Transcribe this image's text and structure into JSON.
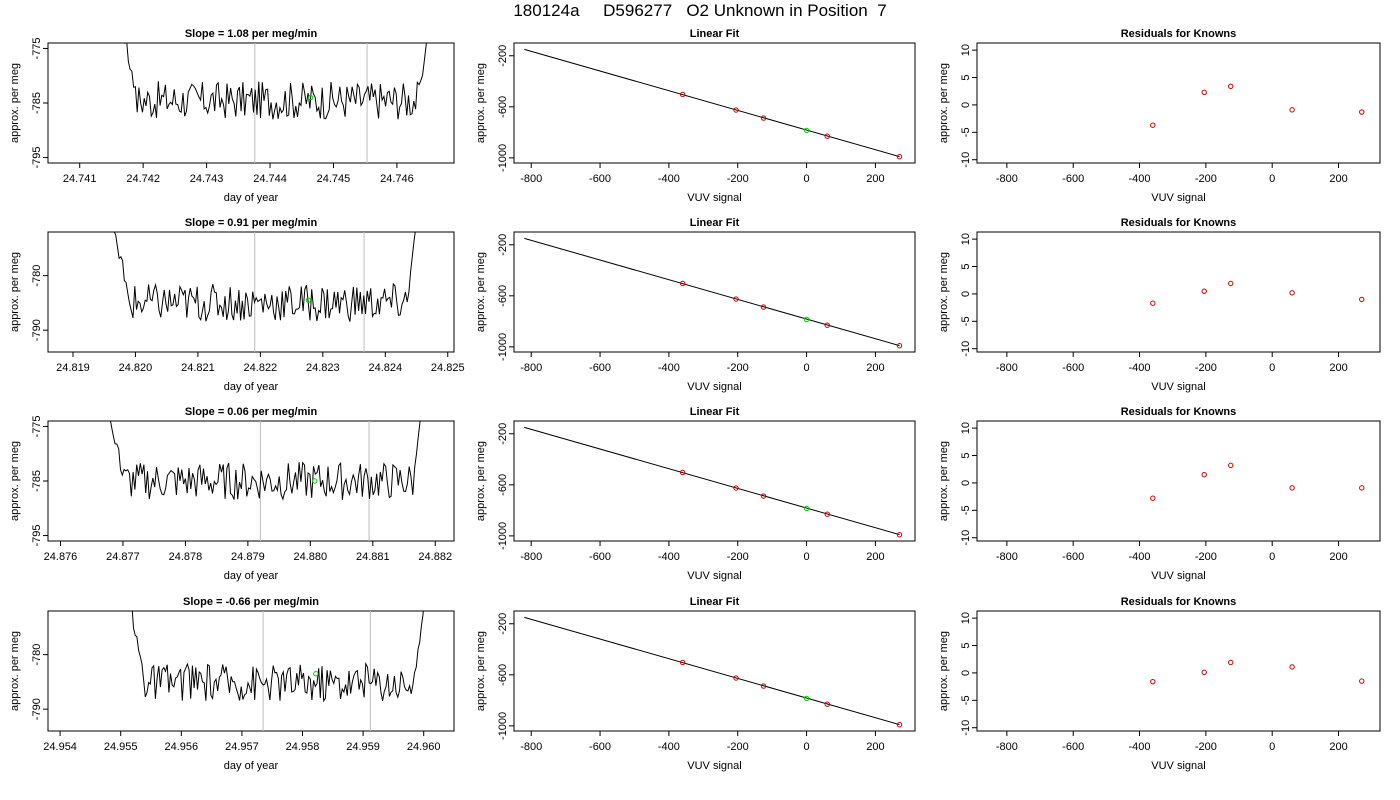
{
  "page_title": "180124a     D596277   O2 Unknown in Position  7",
  "colors": {
    "trace": "#000000",
    "known_point": "#cc0000",
    "unknown_point": "#00cc00",
    "marker_line": "#bdbdbd",
    "frame": "#000000"
  },
  "chart_data": [
    {
      "type": "line",
      "panel": "time-series",
      "row": 1,
      "title": "Slope =  1.08  per meg/min",
      "xlabel": "day of year",
      "ylabel": "approx. per meg",
      "xlim": [
        24.7405,
        24.7469
      ],
      "ylim": [
        -796,
        -774
      ],
      "xticks": [
        "24.741",
        "24.742",
        "24.743",
        "24.744",
        "24.745",
        "24.746"
      ],
      "yticks": [
        "-775",
        "-785",
        "-795"
      ],
      "trace": {
        "start": 24.7416,
        "end": 24.7466,
        "baseline": -784.5
      },
      "markers_x": [
        24.74376,
        24.74553
      ],
      "unknown_point": {
        "x": 24.74464,
        "y": -784.0
      }
    },
    {
      "type": "scatter",
      "panel": "linear-fit",
      "row": 1,
      "title": "Linear Fit",
      "xlabel": "VUV signal",
      "ylabel": "approx. per meg",
      "xlim": [
        -850,
        315
      ],
      "ylim": [
        -1040,
        -100
      ],
      "xticks": [
        "-800",
        "-600",
        "-400",
        "-200",
        "0",
        "200"
      ],
      "yticks": [
        "-200",
        "-600",
        "-1000"
      ],
      "fit_line": {
        "x1": -820,
        "y1": -150,
        "x2": 270,
        "y2": -990
      },
      "knowns": [
        {
          "x": -360,
          "y": -503
        },
        {
          "x": -205,
          "y": -625
        },
        {
          "x": -125,
          "y": -688
        },
        {
          "x": 60,
          "y": -830
        },
        {
          "x": 270,
          "y": -991
        }
      ],
      "unknown": {
        "x": 0,
        "y": -785
      }
    },
    {
      "type": "scatter",
      "panel": "residuals",
      "row": 1,
      "title": "Residuals for Knowns",
      "xlabel": "VUV signal",
      "ylabel": "approx. per meg",
      "xlim": [
        -890,
        325
      ],
      "ylim": [
        -10.6,
        11.3
      ],
      "xticks": [
        "-800",
        "-600",
        "-400",
        "-200",
        "0",
        "200"
      ],
      "yticks": [
        "10",
        "5",
        "0",
        "-5",
        "-10"
      ],
      "knowns": [
        {
          "x": -360,
          "y": -3.7
        },
        {
          "x": -205,
          "y": 2.3
        },
        {
          "x": -125,
          "y": 3.4
        },
        {
          "x": 60,
          "y": -0.9
        },
        {
          "x": 270,
          "y": -1.3
        }
      ]
    },
    {
      "type": "line",
      "panel": "time-series",
      "row": 2,
      "title": "Slope =  0.91  per meg/min",
      "xlabel": "day of year",
      "ylabel": "approx. per meg",
      "xlim": [
        24.8186,
        24.8251
      ],
      "ylim": [
        -794,
        -772
      ],
      "xticks": [
        "24.819",
        "24.820",
        "24.821",
        "24.822",
        "24.823",
        "24.824",
        "24.825"
      ],
      "yticks": [
        "-780",
        "-790"
      ],
      "trace": {
        "start": 24.8196,
        "end": 24.8246,
        "baseline": -785
      },
      "markers_x": [
        24.82191,
        24.82366
      ],
      "unknown_point": {
        "x": 24.82277,
        "y": -784.5
      }
    },
    {
      "type": "scatter",
      "panel": "linear-fit",
      "row": 2,
      "title": "Linear Fit",
      "xlabel": "VUV signal",
      "ylabel": "approx. per meg",
      "xlim": [
        -850,
        315
      ],
      "ylim": [
        -1040,
        -100
      ],
      "xticks": [
        "-800",
        "-600",
        "-400",
        "-200",
        "0",
        "200"
      ],
      "yticks": [
        "-200",
        "-600",
        "-1000"
      ],
      "fit_line": {
        "x1": -820,
        "y1": -150,
        "x2": 270,
        "y2": -990
      },
      "knowns": [
        {
          "x": -360,
          "y": -503
        },
        {
          "x": -205,
          "y": -625
        },
        {
          "x": -125,
          "y": -688
        },
        {
          "x": 60,
          "y": -830
        },
        {
          "x": 270,
          "y": -991
        }
      ],
      "unknown": {
        "x": 0,
        "y": -785
      }
    },
    {
      "type": "scatter",
      "panel": "residuals",
      "row": 2,
      "title": "Residuals for Knowns",
      "xlabel": "VUV signal",
      "ylabel": "approx. per meg",
      "xlim": [
        -890,
        325
      ],
      "ylim": [
        -10.6,
        11.3
      ],
      "xticks": [
        "-800",
        "-600",
        "-400",
        "-200",
        "0",
        "200"
      ],
      "yticks": [
        "10",
        "5",
        "0",
        "-5",
        "-10"
      ],
      "knowns": [
        {
          "x": -360,
          "y": -1.7
        },
        {
          "x": -205,
          "y": 0.5
        },
        {
          "x": -125,
          "y": 1.9
        },
        {
          "x": 60,
          "y": 0.2
        },
        {
          "x": 270,
          "y": -1.0
        }
      ]
    },
    {
      "type": "line",
      "panel": "time-series",
      "row": 3,
      "title": "Slope =  0.06  per meg/min",
      "xlabel": "day of year",
      "ylabel": "approx. per meg",
      "xlim": [
        24.8758,
        24.8823
      ],
      "ylim": [
        -796,
        -774
      ],
      "xticks": [
        "24.876",
        "24.877",
        "24.878",
        "24.879",
        "24.880",
        "24.881",
        "24.882"
      ],
      "yticks": [
        "-775",
        "-785",
        "-795"
      ],
      "trace": {
        "start": 24.8767,
        "end": 24.8819,
        "baseline": -785
      },
      "markers_x": [
        24.8792,
        24.88094
      ],
      "unknown_point": {
        "x": 24.88007,
        "y": -785.0
      }
    },
    {
      "type": "scatter",
      "panel": "linear-fit",
      "row": 3,
      "title": "Linear Fit",
      "xlabel": "VUV signal",
      "ylabel": "approx. per meg",
      "xlim": [
        -850,
        315
      ],
      "ylim": [
        -1040,
        -100
      ],
      "xticks": [
        "-800",
        "-600",
        "-400",
        "-200",
        "0",
        "200"
      ],
      "yticks": [
        "-200",
        "-600",
        "-1000"
      ],
      "fit_line": {
        "x1": -820,
        "y1": -150,
        "x2": 270,
        "y2": -990
      },
      "knowns": [
        {
          "x": -360,
          "y": -503
        },
        {
          "x": -205,
          "y": -625
        },
        {
          "x": -125,
          "y": -688
        },
        {
          "x": 60,
          "y": -830
        },
        {
          "x": 270,
          "y": -991
        }
      ],
      "unknown": {
        "x": 0,
        "y": -785
      }
    },
    {
      "type": "scatter",
      "panel": "residuals",
      "row": 3,
      "title": "Residuals for Knowns",
      "xlabel": "VUV signal",
      "ylabel": "approx. per meg",
      "xlim": [
        -890,
        325
      ],
      "ylim": [
        -10.6,
        11.3
      ],
      "xticks": [
        "-800",
        "-600",
        "-400",
        "-200",
        "0",
        "200"
      ],
      "yticks": [
        "10",
        "5",
        "0",
        "-5",
        "-10"
      ],
      "knowns": [
        {
          "x": -360,
          "y": -2.8
        },
        {
          "x": -205,
          "y": 1.5
        },
        {
          "x": -125,
          "y": 3.2
        },
        {
          "x": 60,
          "y": -0.9
        },
        {
          "x": 270,
          "y": -0.9
        }
      ]
    },
    {
      "type": "line",
      "panel": "time-series",
      "row": 4,
      "title": "Slope =  -0.66  per meg/min",
      "xlabel": "day of year",
      "ylabel": "approx. per meg",
      "xlim": [
        24.9538,
        24.9605
      ],
      "ylim": [
        -794,
        -772
      ],
      "xticks": [
        "24.954",
        "24.955",
        "24.956",
        "24.957",
        "24.958",
        "24.959",
        "24.960"
      ],
      "yticks": [
        "-780",
        "-790"
      ],
      "trace": {
        "start": 24.9551,
        "end": 24.9601,
        "baseline": -785
      },
      "markers_x": [
        24.95735,
        24.95912
      ],
      "unknown_point": {
        "x": 24.95822,
        "y": -783.5
      }
    },
    {
      "type": "scatter",
      "panel": "linear-fit",
      "row": 4,
      "title": "Linear Fit",
      "xlabel": "VUV signal",
      "ylabel": "approx. per meg",
      "xlim": [
        -850,
        315
      ],
      "ylim": [
        -1040,
        -100
      ],
      "xticks": [
        "-800",
        "-600",
        "-400",
        "-200",
        "0",
        "200"
      ],
      "yticks": [
        "-200",
        "-600",
        "-1000"
      ],
      "fit_line": {
        "x1": -820,
        "y1": -150,
        "x2": 270,
        "y2": -990
      },
      "knowns": [
        {
          "x": -360,
          "y": -503
        },
        {
          "x": -205,
          "y": -625
        },
        {
          "x": -125,
          "y": -688
        },
        {
          "x": 60,
          "y": -830
        },
        {
          "x": 270,
          "y": -991
        }
      ],
      "unknown": {
        "x": 0,
        "y": -785
      }
    },
    {
      "type": "scatter",
      "panel": "residuals",
      "row": 4,
      "title": "Residuals for Knowns",
      "xlabel": "VUV signal",
      "ylabel": "approx. per meg",
      "xlim": [
        -890,
        325
      ],
      "ylim": [
        -10.6,
        11.3
      ],
      "xticks": [
        "-800",
        "-600",
        "-400",
        "-200",
        "0",
        "200"
      ],
      "yticks": [
        "10",
        "5",
        "0",
        "-5",
        "-10"
      ],
      "knowns": [
        {
          "x": -360,
          "y": -1.6
        },
        {
          "x": -205,
          "y": 0.1
        },
        {
          "x": -125,
          "y": 1.9
        },
        {
          "x": 60,
          "y": 1.1
        },
        {
          "x": 270,
          "y": -1.5
        }
      ]
    }
  ]
}
